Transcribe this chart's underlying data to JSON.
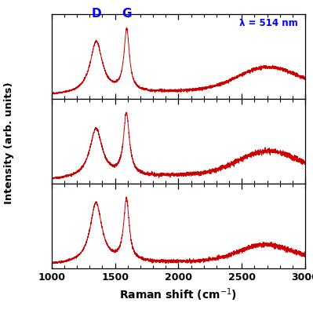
{
  "title": "",
  "xlabel": "Raman shift (cm$^{-1}$)",
  "ylabel": "Intensity (arb. units)",
  "xlim": [
    1000,
    3000
  ],
  "xticklabels": [
    "1000",
    "1500",
    "2000",
    "2500",
    "3000"
  ],
  "xticks": [
    1000,
    1500,
    2000,
    2500,
    3000
  ],
  "line_color": "#cc0000",
  "label_D": "D",
  "label_G": "G",
  "label_lambda": "λ = 514 nm",
  "panel_labels_color": "blue",
  "lambda_color": "blue",
  "background_color": "#ffffff"
}
